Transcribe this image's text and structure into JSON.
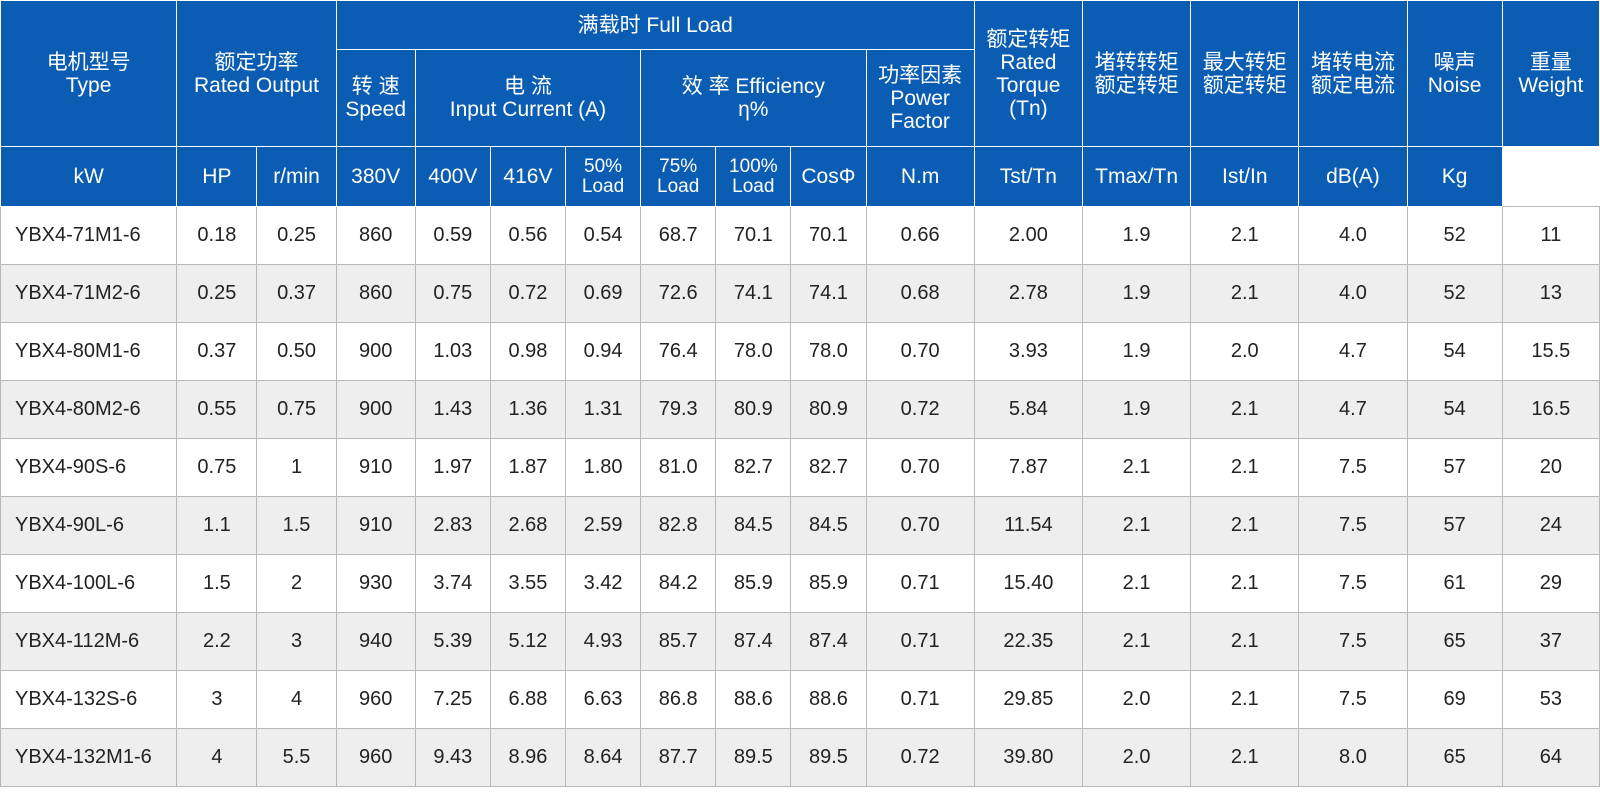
{
  "header": {
    "type": [
      "电机型号",
      "Type"
    ],
    "rated_output": [
      "额定功率",
      "Rated Output"
    ],
    "full_load": "满载时  Full Load",
    "speed": [
      "转 速",
      "Speed"
    ],
    "current": [
      "电 流",
      "Input Current (A)"
    ],
    "efficiency": [
      "效 率 Efficiency",
      "η%"
    ],
    "power_factor": [
      "功率因素",
      "Power",
      "Factor"
    ],
    "rated_torque": [
      "额定转矩",
      "Rated",
      "Torque",
      "(Tn)"
    ],
    "locked_torque": [
      "堵转转矩",
      "额定转矩"
    ],
    "max_torque": [
      "最大转矩",
      "额定转矩"
    ],
    "locked_current": [
      "堵转电流",
      "额定电流"
    ],
    "noise": [
      "噪声",
      "Noise"
    ],
    "weight": [
      "重量",
      "Weight"
    ],
    "units": {
      "kw": "kW",
      "hp": "HP",
      "rmin": "r/min",
      "v380": "380V",
      "v400": "400V",
      "v416": "416V",
      "load50": [
        "50%",
        "Load"
      ],
      "load75": [
        "75%",
        "Load"
      ],
      "load100": [
        "100%",
        "Load"
      ],
      "cos": "CosΦ",
      "nm": "N.m",
      "tst": "Tst/Tn",
      "tmax": "Tmax/Tn",
      "ist": "Ist/In",
      "db": "dB(A)",
      "kg": "Kg"
    }
  },
  "rows": [
    [
      "YBX4-71M1-6",
      "0.18",
      "0.25",
      "860",
      "0.59",
      "0.56",
      "0.54",
      "68.7",
      "70.1",
      "70.1",
      "0.66",
      "2.00",
      "1.9",
      "2.1",
      "4.0",
      "52",
      "11"
    ],
    [
      "YBX4-71M2-6",
      "0.25",
      "0.37",
      "860",
      "0.75",
      "0.72",
      "0.69",
      "72.6",
      "74.1",
      "74.1",
      "0.68",
      "2.78",
      "1.9",
      "2.1",
      "4.0",
      "52",
      "13"
    ],
    [
      "YBX4-80M1-6",
      "0.37",
      "0.50",
      "900",
      "1.03",
      "0.98",
      "0.94",
      "76.4",
      "78.0",
      "78.0",
      "0.70",
      "3.93",
      "1.9",
      "2.0",
      "4.7",
      "54",
      "15.5"
    ],
    [
      "YBX4-80M2-6",
      "0.55",
      "0.75",
      "900",
      "1.43",
      "1.36",
      "1.31",
      "79.3",
      "80.9",
      "80.9",
      "0.72",
      "5.84",
      "1.9",
      "2.1",
      "4.7",
      "54",
      "16.5"
    ],
    [
      "YBX4-90S-6",
      "0.75",
      "1",
      "910",
      "1.97",
      "1.87",
      "1.80",
      "81.0",
      "82.7",
      "82.7",
      "0.70",
      "7.87",
      "2.1",
      "2.1",
      "7.5",
      "57",
      "20"
    ],
    [
      "YBX4-90L-6",
      "1.1",
      "1.5",
      "910",
      "2.83",
      "2.68",
      "2.59",
      "82.8",
      "84.5",
      "84.5",
      "0.70",
      "11.54",
      "2.1",
      "2.1",
      "7.5",
      "57",
      "24"
    ],
    [
      "YBX4-100L-6",
      "1.5",
      "2",
      "930",
      "3.74",
      "3.55",
      "3.42",
      "84.2",
      "85.9",
      "85.9",
      "0.71",
      "15.40",
      "2.1",
      "2.1",
      "7.5",
      "61",
      "29"
    ],
    [
      "YBX4-112M-6",
      "2.2",
      "3",
      "940",
      "5.39",
      "5.12",
      "4.93",
      "85.7",
      "87.4",
      "87.4",
      "0.71",
      "22.35",
      "2.1",
      "2.1",
      "7.5",
      "65",
      "37"
    ],
    [
      "YBX4-132S-6",
      "3",
      "4",
      "960",
      "7.25",
      "6.88",
      "6.63",
      "86.8",
      "88.6",
      "88.6",
      "0.71",
      "29.85",
      "2.0",
      "2.1",
      "7.5",
      "69",
      "53"
    ],
    [
      "YBX4-132M1-6",
      "4",
      "5.5",
      "960",
      "9.43",
      "8.96",
      "8.64",
      "87.7",
      "89.5",
      "89.5",
      "0.72",
      "39.80",
      "2.0",
      "2.1",
      "8.0",
      "65",
      "64"
    ]
  ]
}
